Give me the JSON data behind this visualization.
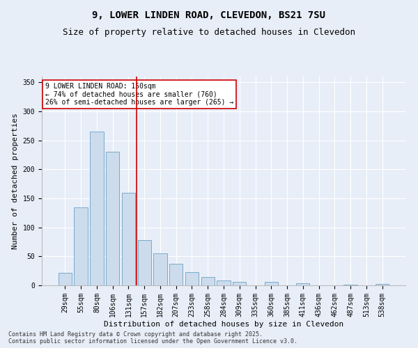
{
  "title": "9, LOWER LINDEN ROAD, CLEVEDON, BS21 7SU",
  "subtitle": "Size of property relative to detached houses in Clevedon",
  "xlabel": "Distribution of detached houses by size in Clevedon",
  "ylabel": "Number of detached properties",
  "categories": [
    "29sqm",
    "55sqm",
    "80sqm",
    "106sqm",
    "131sqm",
    "157sqm",
    "182sqm",
    "207sqm",
    "233sqm",
    "258sqm",
    "284sqm",
    "309sqm",
    "335sqm",
    "360sqm",
    "385sqm",
    "411sqm",
    "436sqm",
    "462sqm",
    "487sqm",
    "513sqm",
    "538sqm"
  ],
  "values": [
    22,
    134,
    265,
    230,
    160,
    78,
    55,
    37,
    23,
    14,
    9,
    6,
    0,
    6,
    0,
    4,
    0,
    0,
    1,
    0,
    2
  ],
  "bar_color": "#ccdcec",
  "bar_edge_color": "#7aaaca",
  "vline_x_index": 4.5,
  "vline_color": "#cc0000",
  "annotation_text": "9 LOWER LINDEN ROAD: 150sqm\n← 74% of detached houses are smaller (760)\n26% of semi-detached houses are larger (265) →",
  "annotation_box_color": "#ffffff",
  "annotation_box_edge": "#cc0000",
  "ylim": [
    0,
    360
  ],
  "yticks": [
    0,
    50,
    100,
    150,
    200,
    250,
    300,
    350
  ],
  "bg_color": "#e8eef8",
  "footer": "Contains HM Land Registry data © Crown copyright and database right 2025.\nContains public sector information licensed under the Open Government Licence v3.0.",
  "title_fontsize": 10,
  "subtitle_fontsize": 9,
  "xlabel_fontsize": 8,
  "ylabel_fontsize": 8,
  "tick_fontsize": 7,
  "annotation_fontsize": 7,
  "footer_fontsize": 6
}
